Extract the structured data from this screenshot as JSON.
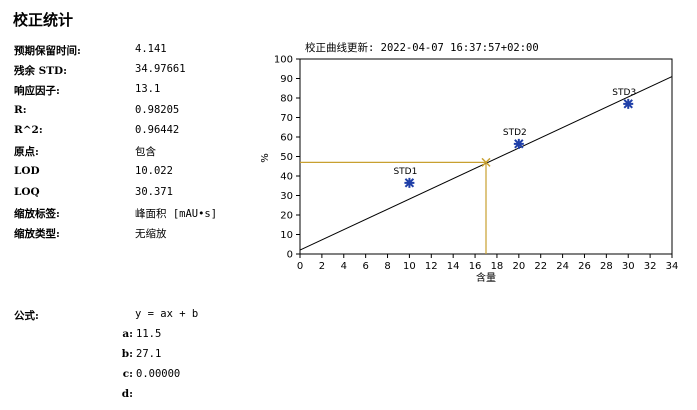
{
  "page": {
    "title": "校正统计"
  },
  "properties": [
    {
      "label": "预期保留时间:",
      "value": "4.141"
    },
    {
      "label": "残余 STD:",
      "value": "34.97661"
    },
    {
      "label": "响应因子:",
      "value": "13.1"
    },
    {
      "label": "R:",
      "value": "0.98205"
    },
    {
      "label": "R^2:",
      "value": "0.96442"
    },
    {
      "label": "原点:",
      "value": "包含"
    },
    {
      "label": "LOD",
      "value": "10.022"
    },
    {
      "label": "LOQ",
      "value": "30.371"
    },
    {
      "label": "缩放标签:",
      "value": "峰面积 [mAU•s]"
    },
    {
      "label": "缩放类型:",
      "value": "无缩放"
    }
  ],
  "formula": {
    "label": "公式:",
    "expression": "y = ax + b",
    "coefficients": [
      {
        "name": "a:",
        "value": "11.5"
      },
      {
        "name": "b:",
        "value": "27.1"
      },
      {
        "name": "c:",
        "value": "0.00000"
      },
      {
        "name": "d:",
        "value": ""
      }
    ]
  },
  "chart_data": {
    "type": "scatter",
    "title": "校正曲线更新: 2022-04-07 16:37:57+02:00",
    "xlabel": "含量",
    "ylabel": "%",
    "xlim": [
      0,
      34
    ],
    "ylim": [
      0,
      100
    ],
    "xticks": [
      0,
      2,
      4,
      6,
      8,
      10,
      12,
      14,
      16,
      18,
      20,
      22,
      24,
      26,
      28,
      30,
      32,
      34
    ],
    "yticks": [
      0,
      10,
      20,
      30,
      40,
      50,
      60,
      70,
      80,
      90,
      100
    ],
    "grid": false,
    "points": [
      {
        "label": "STD1",
        "x": 10,
        "y": 36.5
      },
      {
        "label": "STD2",
        "x": 20,
        "y": 56.5
      },
      {
        "label": "STD3",
        "x": 30,
        "y": 77
      }
    ],
    "fit_line": {
      "x": [
        0,
        34
      ],
      "y": [
        2,
        91
      ]
    },
    "marker": {
      "x": 17,
      "y": 47
    },
    "colors": {
      "points": "#1f3fa8",
      "line": "#000000",
      "marker": "#c8a030"
    }
  }
}
